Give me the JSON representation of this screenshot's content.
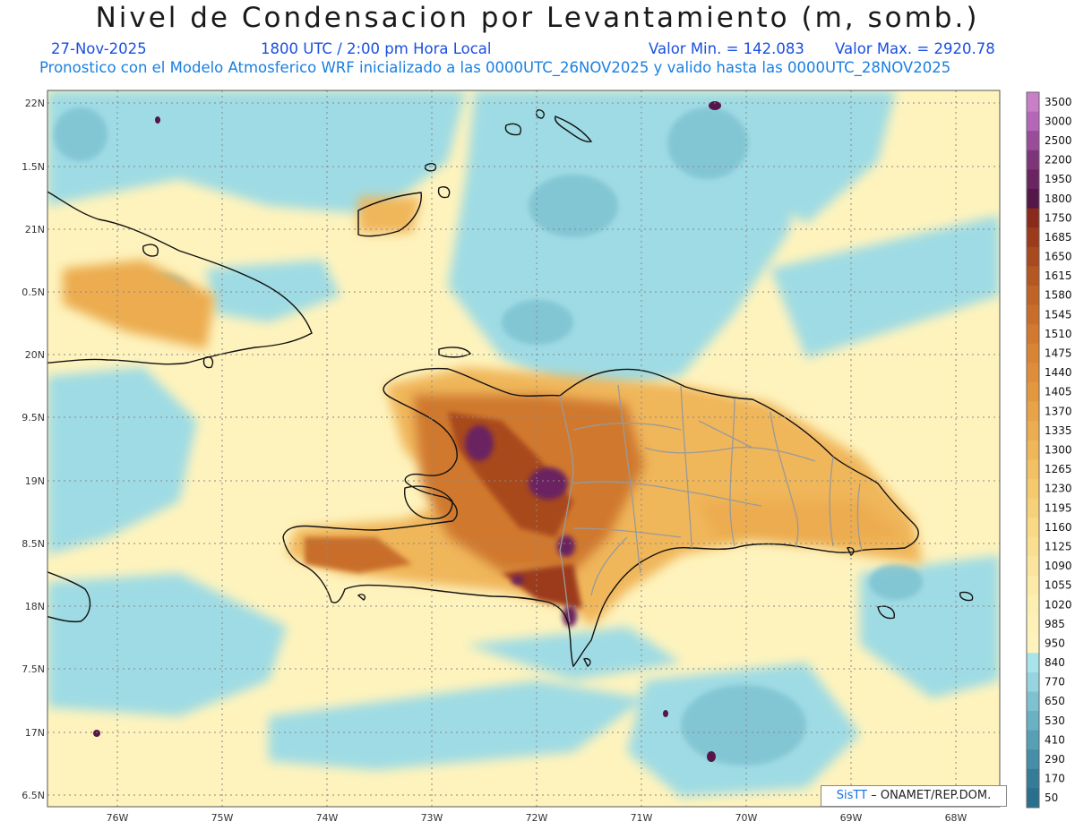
{
  "title": "Nivel de Condensacion por Levantamiento (m, somb.)",
  "date": "27-Nov-2025",
  "time": "1800 UTC / 2:00 pm Hora Local",
  "min_label": "Valor Min. = 142.083",
  "max_label": "Valor Max. = 2920.78",
  "subtitle": "Pronostico con el Modelo Atmosferico WRF inicializado a las 0000UTC_26NOV2025 y valido hasta las  0000UTC_28NOV2025",
  "lat_labels": [
    "22N",
    "1.5N",
    "21N",
    "0.5N",
    "20N",
    "9.5N",
    "19N",
    "8.5N",
    "18N",
    "7.5N",
    "17N",
    "6.5N"
  ],
  "lon_labels": [
    "76W",
    "75W",
    "74W",
    "73W",
    "72W",
    "71W",
    "70W",
    "69W",
    "68W"
  ],
  "colorbar": {
    "levels": [
      "3500",
      "3000",
      "2500",
      "2200",
      "1950",
      "1800",
      "1750",
      "1685",
      "1650",
      "1615",
      "1580",
      "1545",
      "1510",
      "1475",
      "1440",
      "1405",
      "1370",
      "1335",
      "1300",
      "1265",
      "1230",
      "1195",
      "1160",
      "1125",
      "1090",
      "1055",
      "1020",
      "985",
      "950",
      "840",
      "770",
      "650",
      "530",
      "410",
      "290",
      "170",
      "50"
    ],
    "colors": [
      "#c97ec8",
      "#b566b9",
      "#9a4c9b",
      "#7e3479",
      "#6a2460",
      "#551649",
      "#8a2a1b",
      "#9c3a1c",
      "#a8491f",
      "#b45723",
      "#bf6426",
      "#c86e2a",
      "#d0792f",
      "#d78434",
      "#de8e3a",
      "#e39840",
      "#e8a248",
      "#ecac50",
      "#f0b65a",
      "#f3c064",
      "#f5c96e",
      "#f7d17a",
      "#f9d886",
      "#fadf92",
      "#fbe59e",
      "#fceaa8",
      "#fdeeb1",
      "#fdf1b8",
      "#fef3bd",
      "#a9e4ea",
      "#96d4df",
      "#7ec2d1",
      "#6ab1c3",
      "#579fb5",
      "#468ea7",
      "#357c98",
      "#2a6f8c"
    ]
  },
  "stats": {
    "min": 142.083,
    "max": 2920.78
  },
  "credit": {
    "logo": "SisTT",
    "text": "– ONAMET/REP.DOM."
  }
}
